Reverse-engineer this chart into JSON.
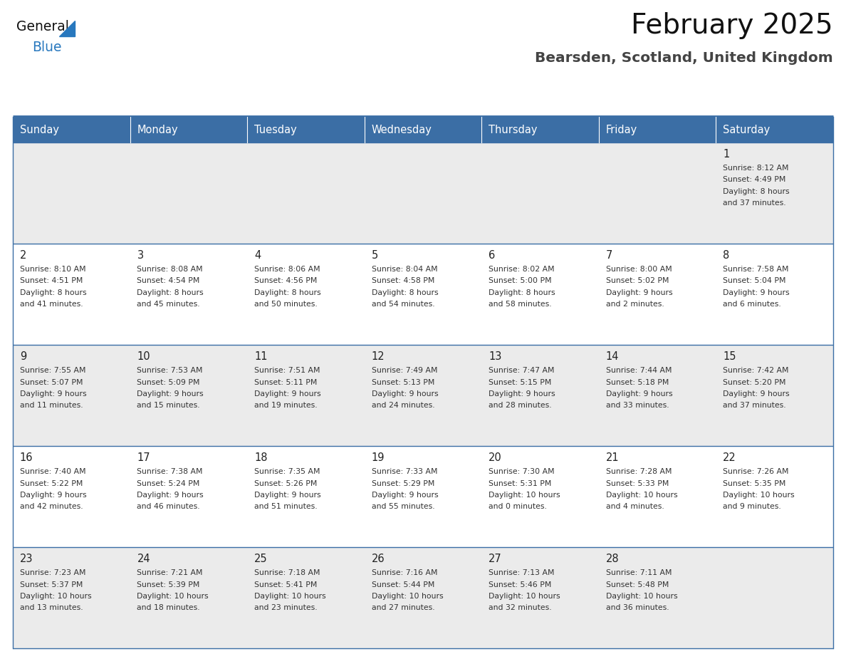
{
  "title": "February 2025",
  "subtitle": "Bearsden, Scotland, United Kingdom",
  "days_of_week": [
    "Sunday",
    "Monday",
    "Tuesday",
    "Wednesday",
    "Thursday",
    "Friday",
    "Saturday"
  ],
  "header_bg_color": "#3b6ea5",
  "header_text_color": "#ffffff",
  "row0_bg": "#ebebeb",
  "row1_bg": "#ffffff",
  "cell_text_color": "#333333",
  "day_num_color": "#222222",
  "title_color": "#111111",
  "subtitle_color": "#444444",
  "logo_general_color": "#111111",
  "logo_blue_color": "#2878be",
  "separator_color": "#3b6ea5",
  "calendar_data": [
    [
      null,
      null,
      null,
      null,
      null,
      null,
      {
        "day": 1,
        "sunrise": "8:12 AM",
        "sunset": "4:49 PM",
        "daylight_h": "8 hours",
        "daylight_m": "and 37 minutes."
      }
    ],
    [
      {
        "day": 2,
        "sunrise": "8:10 AM",
        "sunset": "4:51 PM",
        "daylight_h": "8 hours",
        "daylight_m": "and 41 minutes."
      },
      {
        "day": 3,
        "sunrise": "8:08 AM",
        "sunset": "4:54 PM",
        "daylight_h": "8 hours",
        "daylight_m": "and 45 minutes."
      },
      {
        "day": 4,
        "sunrise": "8:06 AM",
        "sunset": "4:56 PM",
        "daylight_h": "8 hours",
        "daylight_m": "and 50 minutes."
      },
      {
        "day": 5,
        "sunrise": "8:04 AM",
        "sunset": "4:58 PM",
        "daylight_h": "8 hours",
        "daylight_m": "and 54 minutes."
      },
      {
        "day": 6,
        "sunrise": "8:02 AM",
        "sunset": "5:00 PM",
        "daylight_h": "8 hours",
        "daylight_m": "and 58 minutes."
      },
      {
        "day": 7,
        "sunrise": "8:00 AM",
        "sunset": "5:02 PM",
        "daylight_h": "9 hours",
        "daylight_m": "and 2 minutes."
      },
      {
        "day": 8,
        "sunrise": "7:58 AM",
        "sunset": "5:04 PM",
        "daylight_h": "9 hours",
        "daylight_m": "and 6 minutes."
      }
    ],
    [
      {
        "day": 9,
        "sunrise": "7:55 AM",
        "sunset": "5:07 PM",
        "daylight_h": "9 hours",
        "daylight_m": "and 11 minutes."
      },
      {
        "day": 10,
        "sunrise": "7:53 AM",
        "sunset": "5:09 PM",
        "daylight_h": "9 hours",
        "daylight_m": "and 15 minutes."
      },
      {
        "day": 11,
        "sunrise": "7:51 AM",
        "sunset": "5:11 PM",
        "daylight_h": "9 hours",
        "daylight_m": "and 19 minutes."
      },
      {
        "day": 12,
        "sunrise": "7:49 AM",
        "sunset": "5:13 PM",
        "daylight_h": "9 hours",
        "daylight_m": "and 24 minutes."
      },
      {
        "day": 13,
        "sunrise": "7:47 AM",
        "sunset": "5:15 PM",
        "daylight_h": "9 hours",
        "daylight_m": "and 28 minutes."
      },
      {
        "day": 14,
        "sunrise": "7:44 AM",
        "sunset": "5:18 PM",
        "daylight_h": "9 hours",
        "daylight_m": "and 33 minutes."
      },
      {
        "day": 15,
        "sunrise": "7:42 AM",
        "sunset": "5:20 PM",
        "daylight_h": "9 hours",
        "daylight_m": "and 37 minutes."
      }
    ],
    [
      {
        "day": 16,
        "sunrise": "7:40 AM",
        "sunset": "5:22 PM",
        "daylight_h": "9 hours",
        "daylight_m": "and 42 minutes."
      },
      {
        "day": 17,
        "sunrise": "7:38 AM",
        "sunset": "5:24 PM",
        "daylight_h": "9 hours",
        "daylight_m": "and 46 minutes."
      },
      {
        "day": 18,
        "sunrise": "7:35 AM",
        "sunset": "5:26 PM",
        "daylight_h": "9 hours",
        "daylight_m": "and 51 minutes."
      },
      {
        "day": 19,
        "sunrise": "7:33 AM",
        "sunset": "5:29 PM",
        "daylight_h": "9 hours",
        "daylight_m": "and 55 minutes."
      },
      {
        "day": 20,
        "sunrise": "7:30 AM",
        "sunset": "5:31 PM",
        "daylight_h": "10 hours",
        "daylight_m": "and 0 minutes."
      },
      {
        "day": 21,
        "sunrise": "7:28 AM",
        "sunset": "5:33 PM",
        "daylight_h": "10 hours",
        "daylight_m": "and 4 minutes."
      },
      {
        "day": 22,
        "sunrise": "7:26 AM",
        "sunset": "5:35 PM",
        "daylight_h": "10 hours",
        "daylight_m": "and 9 minutes."
      }
    ],
    [
      {
        "day": 23,
        "sunrise": "7:23 AM",
        "sunset": "5:37 PM",
        "daylight_h": "10 hours",
        "daylight_m": "and 13 minutes."
      },
      {
        "day": 24,
        "sunrise": "7:21 AM",
        "sunset": "5:39 PM",
        "daylight_h": "10 hours",
        "daylight_m": "and 18 minutes."
      },
      {
        "day": 25,
        "sunrise": "7:18 AM",
        "sunset": "5:41 PM",
        "daylight_h": "10 hours",
        "daylight_m": "and 23 minutes."
      },
      {
        "day": 26,
        "sunrise": "7:16 AM",
        "sunset": "5:44 PM",
        "daylight_h": "10 hours",
        "daylight_m": "and 27 minutes."
      },
      {
        "day": 27,
        "sunrise": "7:13 AM",
        "sunset": "5:46 PM",
        "daylight_h": "10 hours",
        "daylight_m": "and 32 minutes."
      },
      {
        "day": 28,
        "sunrise": "7:11 AM",
        "sunset": "5:48 PM",
        "daylight_h": "10 hours",
        "daylight_m": "and 36 minutes."
      },
      null
    ]
  ]
}
